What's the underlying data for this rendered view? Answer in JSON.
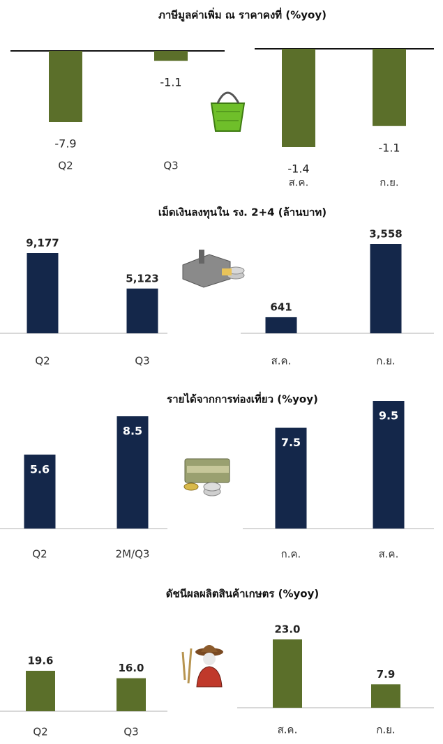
{
  "chart_data": [
    {
      "type": "bar",
      "title": "ภาษีมูลค่าเพิ่ม ณ ราคาคงที่ (%yoy)",
      "label_position": "below",
      "color": "#5b6f2a",
      "panels": [
        {
          "categories": [
            "Q2",
            "Q3"
          ],
          "values": [
            -7.9,
            -1.1
          ]
        },
        {
          "categories": [
            "ส.ค.",
            "ก.ย."
          ],
          "values": [
            -1.4,
            -1.1
          ]
        }
      ]
    },
    {
      "type": "bar",
      "title": "เม็ดเงินลงทุนใน รง. 2+4 (ล้านบาท)",
      "label_position": "above",
      "color": "#14274a",
      "panels": [
        {
          "categories": [
            "Q2",
            "Q3"
          ],
          "values": [
            9177,
            5123
          ],
          "value_labels": [
            "9,177",
            "5,123"
          ]
        },
        {
          "categories": [
            "ส.ค.",
            "ก.ย."
          ],
          "values": [
            641,
            3558
          ],
          "value_labels": [
            "641",
            "3,558"
          ]
        }
      ]
    },
    {
      "type": "bar",
      "title": "รายได้จากการท่องเที่ยว (%yoy)",
      "label_position": "inside",
      "color": "#14274a",
      "panels": [
        {
          "categories": [
            "Q2",
            "2M/Q3"
          ],
          "values": [
            5.6,
            8.5
          ]
        },
        {
          "categories": [
            "ก.ค.",
            "ส.ค."
          ],
          "values": [
            7.5,
            9.5
          ]
        }
      ]
    },
    {
      "type": "bar",
      "title": "ดัชนีผลผลิตสินค้าเกษตร (%yoy)",
      "label_position": "above",
      "color": "#5b6f2a",
      "panels": [
        {
          "categories": [
            "Q2",
            "Q3"
          ],
          "values": [
            19.6,
            16.0
          ],
          "value_labels": [
            "19.6",
            "16.0"
          ]
        },
        {
          "categories": [
            "ส.ค.",
            "ก.ย."
          ],
          "values": [
            23.0,
            7.9
          ],
          "value_labels": [
            "23.0",
            "7.9"
          ]
        }
      ]
    }
  ]
}
